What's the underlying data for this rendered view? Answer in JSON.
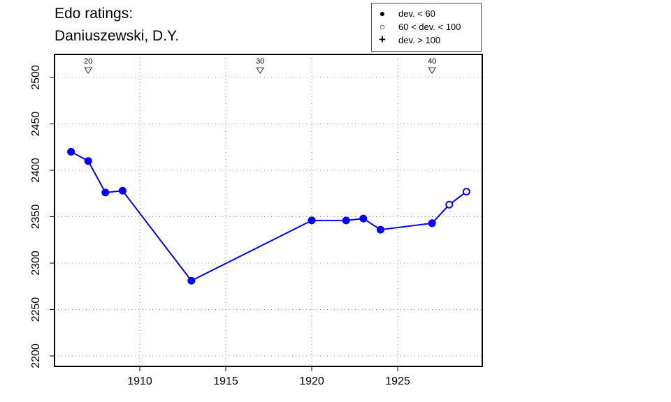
{
  "title_line1": "Edo ratings:",
  "title_line2": "Daniuszewski, D.Y.",
  "legend": [
    {
      "symbol": "filled-circle",
      "label": "dev. < 60"
    },
    {
      "symbol": "open-circle",
      "label": "60 < dev. < 100"
    },
    {
      "symbol": "plus",
      "label": "dev. > 100"
    }
  ],
  "chart_data": {
    "type": "line",
    "title": "Edo ratings: Daniuszewski, D.Y.",
    "xlim": [
      1905.1,
      1930
    ],
    "ylim": [
      2188,
      2525
    ],
    "x_ticks": [
      1910,
      1915,
      1920,
      1925
    ],
    "y_ticks": [
      2200,
      2250,
      2300,
      2350,
      2400,
      2450,
      2500
    ],
    "grid": true,
    "line_color": "#0000ff",
    "legend_position": "top-right",
    "points": [
      {
        "x": 1906,
        "y": 2420,
        "dev": "low"
      },
      {
        "x": 1907,
        "y": 2410,
        "dev": "low"
      },
      {
        "x": 1908,
        "y": 2376,
        "dev": "low"
      },
      {
        "x": 1909,
        "y": 2378,
        "dev": "low"
      },
      {
        "x": 1913,
        "y": 2281,
        "dev": "low"
      },
      {
        "x": 1920,
        "y": 2346,
        "dev": "low"
      },
      {
        "x": 1922,
        "y": 2346,
        "dev": "low"
      },
      {
        "x": 1923,
        "y": 2348,
        "dev": "low"
      },
      {
        "x": 1924,
        "y": 2336,
        "dev": "low"
      },
      {
        "x": 1927,
        "y": 2343,
        "dev": "low"
      },
      {
        "x": 1928,
        "y": 2363,
        "dev": "mid"
      },
      {
        "x": 1929,
        "y": 2377,
        "dev": "mid"
      }
    ],
    "top_markers": [
      {
        "x": 1907,
        "label": "20"
      },
      {
        "x": 1917,
        "label": "30"
      },
      {
        "x": 1927,
        "label": "40"
      }
    ]
  }
}
